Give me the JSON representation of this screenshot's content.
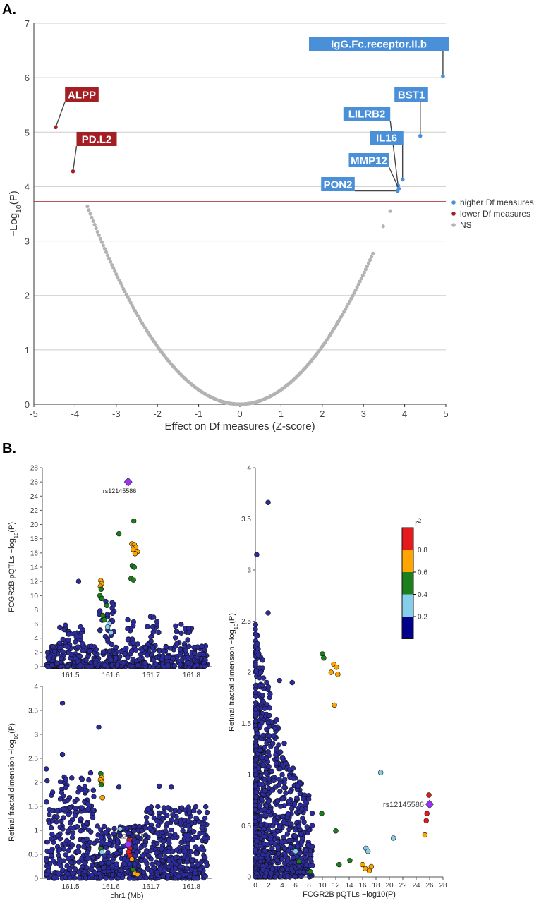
{
  "panel_a": {
    "panel_label": "A.",
    "chart_data": {
      "type": "scatter",
      "xlabel": "Effect on Df measures (Z-score)",
      "ylabel": "−Log10(P)",
      "xlim": [
        -5,
        5
      ],
      "ylim": [
        0,
        7
      ],
      "x_ticks": [
        "-5",
        "-4",
        "-3",
        "-2",
        "-1",
        "0",
        "1",
        "2",
        "3",
        "4",
        "5"
      ],
      "y_ticks": [
        "0",
        "1",
        "2",
        "3",
        "4",
        "5",
        "6",
        "7"
      ],
      "grid": "horizontal",
      "threshold": 3.72,
      "legend_position": "right",
      "legend": [
        {
          "label": "higher Df measures",
          "color": "#4a90d9"
        },
        {
          "label": "lower Df measures",
          "color": "#a31f24"
        },
        {
          "label": "NS",
          "color": "#b3b3b3"
        }
      ],
      "labeled_points": [
        {
          "label": "IgG.Fc.receptor.II.b",
          "x": 4.93,
          "y": 6.03,
          "group": "higher"
        },
        {
          "label": "BST1",
          "x": 4.38,
          "y": 4.93,
          "group": "higher"
        },
        {
          "label": "LILRB2",
          "x": 3.84,
          "y": 4.02,
          "group": "higher"
        },
        {
          "label": "IL16",
          "x": 3.95,
          "y": 4.13,
          "group": "higher"
        },
        {
          "label": "MMP12",
          "x": 3.86,
          "y": 3.96,
          "group": "higher"
        },
        {
          "label": "PON2",
          "x": 3.83,
          "y": 3.92,
          "group": "higher"
        },
        {
          "label": "ALPP",
          "x": -4.47,
          "y": 5.09,
          "group": "lower"
        },
        {
          "label": "PD.L2",
          "x": -4.05,
          "y": 4.28,
          "group": "lower"
        }
      ],
      "ns_extra_points": [
        {
          "x": 3.65,
          "y": 3.55
        },
        {
          "x": 3.48,
          "y": 3.27
        }
      ]
    }
  },
  "panel_b": {
    "panel_label": "B.",
    "top_locus": {
      "chart_data": {
        "type": "scatter",
        "ylabel": "FCGR2B pQTLs −log10(P)",
        "xlim": [
          161.43,
          161.85
        ],
        "ylim": [
          0,
          28
        ],
        "x_ticks": [
          "161.5",
          "161.6",
          "161.7",
          "161.8"
        ],
        "y_ticks": [
          "0",
          "2",
          "4",
          "6",
          "8",
          "10",
          "12",
          "14",
          "16",
          "18",
          "20",
          "22",
          "24",
          "26",
          "28"
        ],
        "lead_snp": {
          "label": "rs12145586",
          "x": 161.643,
          "y": 26
        },
        "highlight_points": [
          {
            "x": 161.657,
            "y": 20.5,
            "r2": 0.4
          },
          {
            "x": 161.62,
            "y": 18.7,
            "r2": 0.4
          },
          {
            "x": 161.652,
            "y": 17.3,
            "r2": 0.6
          },
          {
            "x": 161.658,
            "y": 17.2,
            "r2": 0.6
          },
          {
            "x": 161.662,
            "y": 16.8,
            "r2": 0.6
          },
          {
            "x": 161.655,
            "y": 16.5,
            "r2": 0.6
          },
          {
            "x": 161.666,
            "y": 16.2,
            "r2": 0.6
          },
          {
            "x": 161.66,
            "y": 15.9,
            "r2": 0.6
          },
          {
            "x": 161.653,
            "y": 14.2,
            "r2": 0.4
          },
          {
            "x": 161.658,
            "y": 14.0,
            "r2": 0.4
          },
          {
            "x": 161.65,
            "y": 12.4,
            "r2": 0.4
          },
          {
            "x": 161.656,
            "y": 12.2,
            "r2": 0.4
          },
          {
            "x": 161.575,
            "y": 12.1,
            "r2": 0.6
          },
          {
            "x": 161.577,
            "y": 11.7,
            "r2": 0.6
          },
          {
            "x": 161.574,
            "y": 11.3,
            "r2": 0.6
          },
          {
            "x": 161.576,
            "y": 10.9,
            "r2": 0.4
          },
          {
            "x": 161.573,
            "y": 10.0,
            "r2": 0.4
          },
          {
            "x": 161.578,
            "y": 9.6,
            "r2": 0.4
          },
          {
            "x": 161.59,
            "y": 8.6,
            "r2": 0.4
          },
          {
            "x": 161.58,
            "y": 7.2,
            "r2": 0.4
          },
          {
            "x": 161.584,
            "y": 6.6,
            "r2": 0.4
          },
          {
            "x": 161.596,
            "y": 6.1,
            "r2": 0.3
          },
          {
            "x": 161.592,
            "y": 5.6,
            "r2": 0.3
          },
          {
            "x": 161.6,
            "y": 4.8,
            "r2": 0.3
          }
        ]
      }
    },
    "bottom_locus": {
      "chart_data": {
        "type": "scatter",
        "xlabel": "chr1 (Mb)",
        "ylabel": "Retinal fractal dimension −log10(P)",
        "xlim": [
          161.43,
          161.85
        ],
        "ylim": [
          0,
          4
        ],
        "x_ticks": [
          "161.5",
          "161.6",
          "161.7",
          "161.8"
        ],
        "y_ticks": [
          "0",
          "0.5",
          "1",
          "1.5",
          "2",
          "2.5",
          "3",
          "3.5",
          "4"
        ],
        "lead_snp": {
          "label": "rs12145586",
          "x": 161.643,
          "y": 0.71
        },
        "highlight_points": [
          {
            "x": 161.575,
            "y": 2.18,
            "r2": 0.4
          },
          {
            "x": 161.577,
            "y": 2.1,
            "r2": 0.6
          },
          {
            "x": 161.574,
            "y": 2.05,
            "r2": 0.6
          },
          {
            "x": 161.578,
            "y": 2.0,
            "r2": 0.6
          },
          {
            "x": 161.576,
            "y": 1.95,
            "r2": 0.4
          },
          {
            "x": 161.579,
            "y": 1.68,
            "r2": 0.6
          },
          {
            "x": 161.623,
            "y": 1.03,
            "r2": 0.3
          },
          {
            "x": 161.645,
            "y": 0.8,
            "r2": 0.9
          },
          {
            "x": 161.647,
            "y": 0.62,
            "r2": 0.9
          },
          {
            "x": 161.644,
            "y": 0.55,
            "r2": 0.9
          },
          {
            "x": 161.648,
            "y": 0.47,
            "r2": 0.9
          },
          {
            "x": 161.652,
            "y": 0.4,
            "r2": 0.6
          },
          {
            "x": 161.575,
            "y": 0.62,
            "r2": 0.4
          },
          {
            "x": 161.578,
            "y": 0.55,
            "r2": 0.3
          },
          {
            "x": 161.655,
            "y": 0.18,
            "r2": 0.4
          },
          {
            "x": 161.66,
            "y": 0.1,
            "r2": 0.6
          },
          {
            "x": 161.666,
            "y": 0.08,
            "r2": 0.6
          }
        ]
      }
    },
    "comparison": {
      "chart_data": {
        "type": "scatter",
        "xlabel": "FCGR2B pQTLs −log10(P)",
        "ylabel": "Retinal fractal dimension −log10(P)",
        "xlim": [
          0,
          28
        ],
        "ylim": [
          0,
          4
        ],
        "x_ticks": [
          "0",
          "2",
          "4",
          "6",
          "8",
          "10",
          "12",
          "14",
          "16",
          "18",
          "20",
          "22",
          "24",
          "26",
          "28"
        ],
        "y_ticks": [
          "0",
          "0.5",
          "1",
          "1.5",
          "2",
          "2.5",
          "3",
          "3.5",
          "4"
        ],
        "lead_snp": {
          "label": "rs12145586",
          "x": 26.0,
          "y": 0.71
        },
        "highlight_points": [
          {
            "x": 25.9,
            "y": 0.8,
            "r2": 0.9
          },
          {
            "x": 25.6,
            "y": 0.62,
            "r2": 0.9
          },
          {
            "x": 25.5,
            "y": 0.55,
            "r2": 0.9
          },
          {
            "x": 25.3,
            "y": 0.41,
            "r2": 0.6
          },
          {
            "x": 18.7,
            "y": 1.02,
            "r2": 0.3
          },
          {
            "x": 20.6,
            "y": 0.38,
            "r2": 0.3
          },
          {
            "x": 10.0,
            "y": 2.18,
            "r2": 0.4
          },
          {
            "x": 10.2,
            "y": 2.14,
            "r2": 0.4
          },
          {
            "x": 11.7,
            "y": 2.08,
            "r2": 0.6
          },
          {
            "x": 12.1,
            "y": 2.05,
            "r2": 0.6
          },
          {
            "x": 11.3,
            "y": 2.0,
            "r2": 0.6
          },
          {
            "x": 12.3,
            "y": 1.98,
            "r2": 0.6
          },
          {
            "x": 11.8,
            "y": 1.68,
            "r2": 0.6
          },
          {
            "x": 9.9,
            "y": 0.62,
            "r2": 0.4
          },
          {
            "x": 12.0,
            "y": 0.45,
            "r2": 0.4
          },
          {
            "x": 16.5,
            "y": 0.28,
            "r2": 0.3
          },
          {
            "x": 16.8,
            "y": 0.25,
            "r2": 0.3
          },
          {
            "x": 16.0,
            "y": 0.12,
            "r2": 0.6
          },
          {
            "x": 16.4,
            "y": 0.08,
            "r2": 0.6
          },
          {
            "x": 17.0,
            "y": 0.06,
            "r2": 0.6
          },
          {
            "x": 17.3,
            "y": 0.1,
            "r2": 0.6
          },
          {
            "x": 14.1,
            "y": 0.16,
            "r2": 0.4
          },
          {
            "x": 12.5,
            "y": 0.12,
            "r2": 0.4
          },
          {
            "x": 8.2,
            "y": 0.05,
            "r2": 0.4
          },
          {
            "x": 6.5,
            "y": 0.15,
            "r2": 0.4
          },
          {
            "x": 6.0,
            "y": 0.25,
            "r2": 0.3
          }
        ]
      }
    },
    "r2_legend": {
      "title": "r²",
      "labels": [
        "0.8",
        "0.6",
        "0.4",
        "0.2"
      ],
      "colors": [
        "#e41a1c",
        "#ffa500",
        "#1b7f1b",
        "#87ceeb",
        "#00008b"
      ]
    }
  }
}
